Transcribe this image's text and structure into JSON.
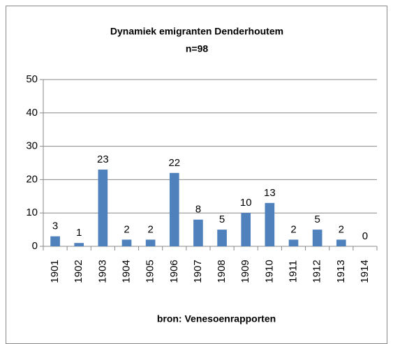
{
  "chart_data": {
    "type": "bar",
    "title": "Dynamiek emigranten Denderhoutem",
    "subtitle": "n=98",
    "x_label": "bron: Venesoenrapporten",
    "categories": [
      "1901",
      "1902",
      "1903",
      "1904",
      "1905",
      "1906",
      "1907",
      "1908",
      "1909",
      "1910",
      "1911",
      "1912",
      "1913",
      "1914"
    ],
    "values": [
      3,
      1,
      23,
      2,
      2,
      22,
      8,
      5,
      10,
      13,
      2,
      5,
      2,
      0
    ],
    "color": "#4f81bd",
    "ylim": [
      0,
      50
    ],
    "yticks": [
      0,
      10,
      20,
      30,
      40,
      50
    ],
    "grid": true
  }
}
